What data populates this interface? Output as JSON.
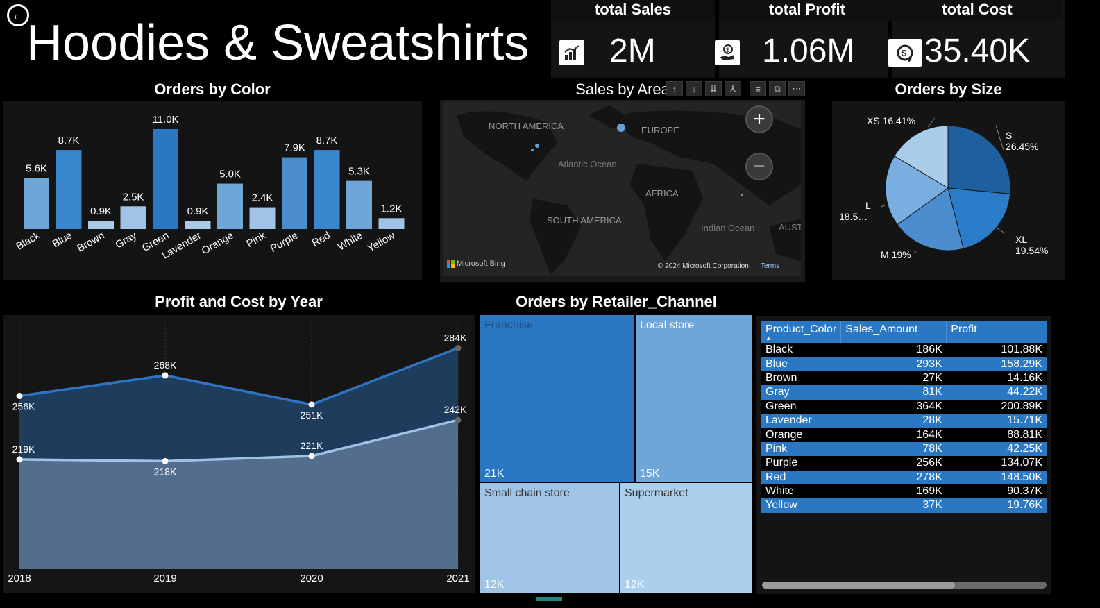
{
  "page": {
    "title": "Hoodies & Sweatshirts"
  },
  "cards": [
    {
      "title": "total Sales",
      "value": "2M",
      "icon": "bar-chart-up-icon"
    },
    {
      "title": "total Profit",
      "value": "1.06M",
      "icon": "hand-money-icon"
    },
    {
      "title": "total Cost",
      "value": "35.40K",
      "icon": "dollar-cycle-icon"
    }
  ],
  "orders_by_color": {
    "title": "Orders by Color",
    "chart_data": {
      "type": "bar",
      "categories": [
        "Black",
        "Blue",
        "Brown",
        "Gray",
        "Green",
        "Lavender",
        "Orange",
        "Pink",
        "Purple",
        "Red",
        "White",
        "Yellow"
      ],
      "values": [
        5.6,
        8.7,
        0.9,
        2.5,
        11.0,
        0.9,
        5.0,
        2.4,
        7.9,
        8.7,
        5.3,
        1.2
      ],
      "labels": [
        "5.6K",
        "8.7K",
        "0.9K",
        "2.5K",
        "11.0K",
        "0.9K",
        "5.0K",
        "2.4K",
        "7.9K",
        "8.7K",
        "5.3K",
        "1.2K"
      ]
    }
  },
  "map": {
    "title": "Sales by Area",
    "labels": {
      "north_america": "NORTH AMERICA",
      "europe": "EUROPE",
      "atlantic": "Atlantic Ocean",
      "africa": "AFRICA",
      "south_america": "SOUTH AMERICA",
      "indian": "Indian Ocean",
      "australia": "AUST"
    },
    "bing": "Microsoft Bing",
    "copyright": "© 2024 Microsoft Corporation",
    "terms": "Terms",
    "zoom_in": "+",
    "zoom_out": "−"
  },
  "toolbar": [
    "↑",
    "↓",
    "⇊",
    "⅄",
    "≡",
    "⧉",
    "⋯"
  ],
  "orders_by_size": {
    "title": "Orders by Size",
    "chart_data": {
      "type": "pie",
      "categories": [
        "S",
        "XL",
        "M",
        "L",
        "XS"
      ],
      "values": [
        26.45,
        19.54,
        19.0,
        18.5,
        16.41
      ],
      "labels": [
        "S",
        "XL",
        "M 19%",
        "L",
        "XS 16.41%"
      ],
      "pct_labels": [
        "26.45%",
        "19.54%",
        "",
        "18.5…",
        ""
      ],
      "colors": [
        "#1e5fa0",
        "#2a7cc8",
        "#4a8ccc",
        "#7aaee0",
        "#a9cceb"
      ]
    }
  },
  "profit_cost": {
    "title": "Profit and Cost by Year",
    "chart_data": {
      "type": "area",
      "x": [
        "2018",
        "2019",
        "2020",
        "2021"
      ],
      "series": [
        {
          "values": [
            256,
            268,
            251,
            284
          ],
          "labels": [
            "256K",
            "268K",
            "251K",
            "284K"
          ],
          "color": "#2f74c4"
        },
        {
          "values": [
            219,
            218,
            221,
            242
          ],
          "labels": [
            "219K",
            "218K",
            "221K",
            "242K"
          ],
          "color": "#9ec3e6"
        }
      ]
    }
  },
  "retailer": {
    "title": "Orders by Retailer_Channel",
    "chart_data": {
      "type": "treemap",
      "categories": [
        "Franchise",
        "Local store",
        "Small chain store",
        "Supermarket"
      ],
      "labels": [
        "21K",
        "15K",
        "12K",
        "12K"
      ],
      "values": [
        21,
        15,
        12,
        12
      ]
    }
  },
  "table": {
    "headers": [
      "Product_Color",
      "Sales_Amount",
      "Profit"
    ],
    "rows": [
      [
        "Black",
        "186K",
        "101.88K"
      ],
      [
        "Blue",
        "293K",
        "158.29K"
      ],
      [
        "Brown",
        "27K",
        "14.16K"
      ],
      [
        "Gray",
        "81K",
        "44.22K"
      ],
      [
        "Green",
        "364K",
        "200.89K"
      ],
      [
        "Lavender",
        "28K",
        "15.71K"
      ],
      [
        "Orange",
        "164K",
        "88.81K"
      ],
      [
        "Pink",
        "78K",
        "42.25K"
      ],
      [
        "Purple",
        "256K",
        "134.07K"
      ],
      [
        "Red",
        "278K",
        "148.50K"
      ],
      [
        "White",
        "169K",
        "90.37K"
      ],
      [
        "Yellow",
        "37K",
        "19.76K"
      ]
    ]
  }
}
